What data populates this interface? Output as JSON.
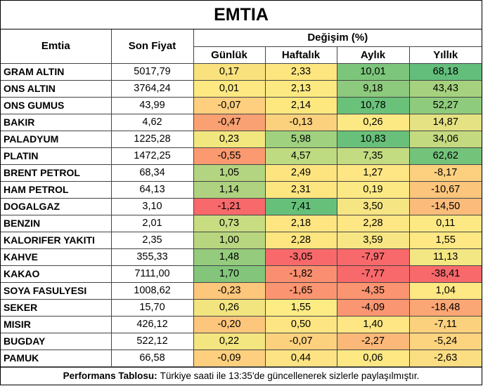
{
  "title": "EMTIA",
  "headers": {
    "commodity": "Emtia",
    "price": "Son Fiyat",
    "change_group": "Değişim (%)",
    "daily": "Günlük",
    "weekly": "Haftalık",
    "monthly": "Aylık",
    "yearly": "Yıllık"
  },
  "rows": [
    {
      "name": "GRAM ALTIN",
      "price": "5017,79",
      "daily": "0,17",
      "weekly": "2,33",
      "monthly": "10,01",
      "yearly": "68,18",
      "colors": [
        "#f9e27e",
        "#fde57f",
        "#7cc67b",
        "#63be7b"
      ]
    },
    {
      "name": "ONS ALTIN",
      "price": "3764,24",
      "daily": "0,01",
      "weekly": "2,13",
      "monthly": "9,18",
      "yearly": "43,43",
      "colors": [
        "#fde882",
        "#fde981",
        "#8dca7d",
        "#a6d27f"
      ]
    },
    {
      "name": "ONS GUMUS",
      "price": "43,99",
      "daily": "-0,07",
      "weekly": "2,14",
      "monthly": "10,78",
      "yearly": "52,27",
      "colors": [
        "#fdcf7e",
        "#fde880",
        "#6ac27a",
        "#8fcb7d"
      ]
    },
    {
      "name": "BAKIR",
      "price": "4,62",
      "daily": "-0,47",
      "weekly": "-0,13",
      "monthly": "0,26",
      "yearly": "14,87",
      "colors": [
        "#faa173",
        "#fcd17d",
        "#fde984",
        "#e4e283"
      ]
    },
    {
      "name": "PALADYUM",
      "price": "1225,28",
      "daily": "0,23",
      "weekly": "5,98",
      "monthly": "10,83",
      "yearly": "34,06",
      "colors": [
        "#f2e67f",
        "#9fd17f",
        "#68c07a",
        "#c4da81"
      ]
    },
    {
      "name": "PLATIN",
      "price": "1472,25",
      "daily": "-0,55",
      "weekly": "4,57",
      "monthly": "7,35",
      "yearly": "62,62",
      "colors": [
        "#fb9a70",
        "#bedb81",
        "#c4dc81",
        "#74c37b"
      ]
    },
    {
      "name": "BRENT PETROL",
      "price": "68,34",
      "daily": "1,05",
      "weekly": "2,49",
      "monthly": "1,27",
      "yearly": "-8,17",
      "colors": [
        "#b3d480",
        "#fde47f",
        "#fde683",
        "#fdd07f"
      ]
    },
    {
      "name": "HAM PETROL",
      "price": "64,13",
      "daily": "1,14",
      "weekly": "2,31",
      "monthly": "0,19",
      "yearly": "-10,67",
      "colors": [
        "#aed27f",
        "#fde57f",
        "#fde984",
        "#fcc57c"
      ]
    },
    {
      "name": "DOGALGAZ",
      "price": "3,10",
      "daily": "-1,21",
      "weekly": "7,41",
      "monthly": "3,50",
      "yearly": "-14,50",
      "colors": [
        "#f8696b",
        "#66c07a",
        "#f6e583",
        "#fbbb7b"
      ]
    },
    {
      "name": "BENZIN",
      "price": "2,01",
      "daily": "0,73",
      "weekly": "2,18",
      "monthly": "2,28",
      "yearly": "0,11",
      "colors": [
        "#c8dc81",
        "#fde681",
        "#fde684",
        "#fde983"
      ]
    },
    {
      "name": "KALORIFER YAKITI",
      "price": "2,35",
      "daily": "1,00",
      "weekly": "2,28",
      "monthly": "3,59",
      "yearly": "1,55",
      "colors": [
        "#b8d680",
        "#fde57f",
        "#f7e683",
        "#fde883"
      ]
    },
    {
      "name": "KAHVE",
      "price": "355,33",
      "daily": "1,48",
      "weekly": "-3,05",
      "monthly": "-7,97",
      "yearly": "11,13",
      "colors": [
        "#94cb7d",
        "#f8696b",
        "#f8696b",
        "#f3e783"
      ]
    },
    {
      "name": "KAKAO",
      "price": "7111,00",
      "daily": "1,70",
      "weekly": "-1,82",
      "monthly": "-7,77",
      "yearly": "-38,41",
      "colors": [
        "#82c57b",
        "#f98f70",
        "#f8696b",
        "#f8696b"
      ]
    },
    {
      "name": "SOYA FASULYESI",
      "price": "1008,62",
      "daily": "-0,23",
      "weekly": "-1,65",
      "monthly": "-4,35",
      "yearly": "1,04",
      "colors": [
        "#fcc67b",
        "#fa9471",
        "#fa9471",
        "#fde883"
      ]
    },
    {
      "name": "SEKER",
      "price": "15,70",
      "daily": "0,26",
      "weekly": "1,55",
      "monthly": "-4,09",
      "yearly": "-18,48",
      "colors": [
        "#f2e47f",
        "#fdeb83",
        "#fa9671",
        "#fba775"
      ]
    },
    {
      "name": "MISIR",
      "price": "426,12",
      "daily": "-0,20",
      "weekly": "0,50",
      "monthly": "1,40",
      "yearly": "-7,11",
      "colors": [
        "#fcc67c",
        "#fde583",
        "#fde683",
        "#fcd17e"
      ]
    },
    {
      "name": "BUGDAY",
      "price": "522,12",
      "daily": "0,22",
      "weekly": "-0,07",
      "monthly": "-2,27",
      "yearly": "-5,24",
      "colors": [
        "#f3e580",
        "#fcd17e",
        "#fbb878",
        "#fcd47f"
      ]
    },
    {
      "name": "PAMUK",
      "price": "66,58",
      "daily": "-0,09",
      "weekly": "0,44",
      "monthly": "0,06",
      "yearly": "-2,63",
      "colors": [
        "#fdcf7e",
        "#fde383",
        "#fde884",
        "#fcde82"
      ]
    }
  ],
  "footer": {
    "bold": "Performans Tablosu:",
    "text": "Türkiye saati ile 13:35'de güncellenerek sizlerle paylaşılmıştır."
  }
}
